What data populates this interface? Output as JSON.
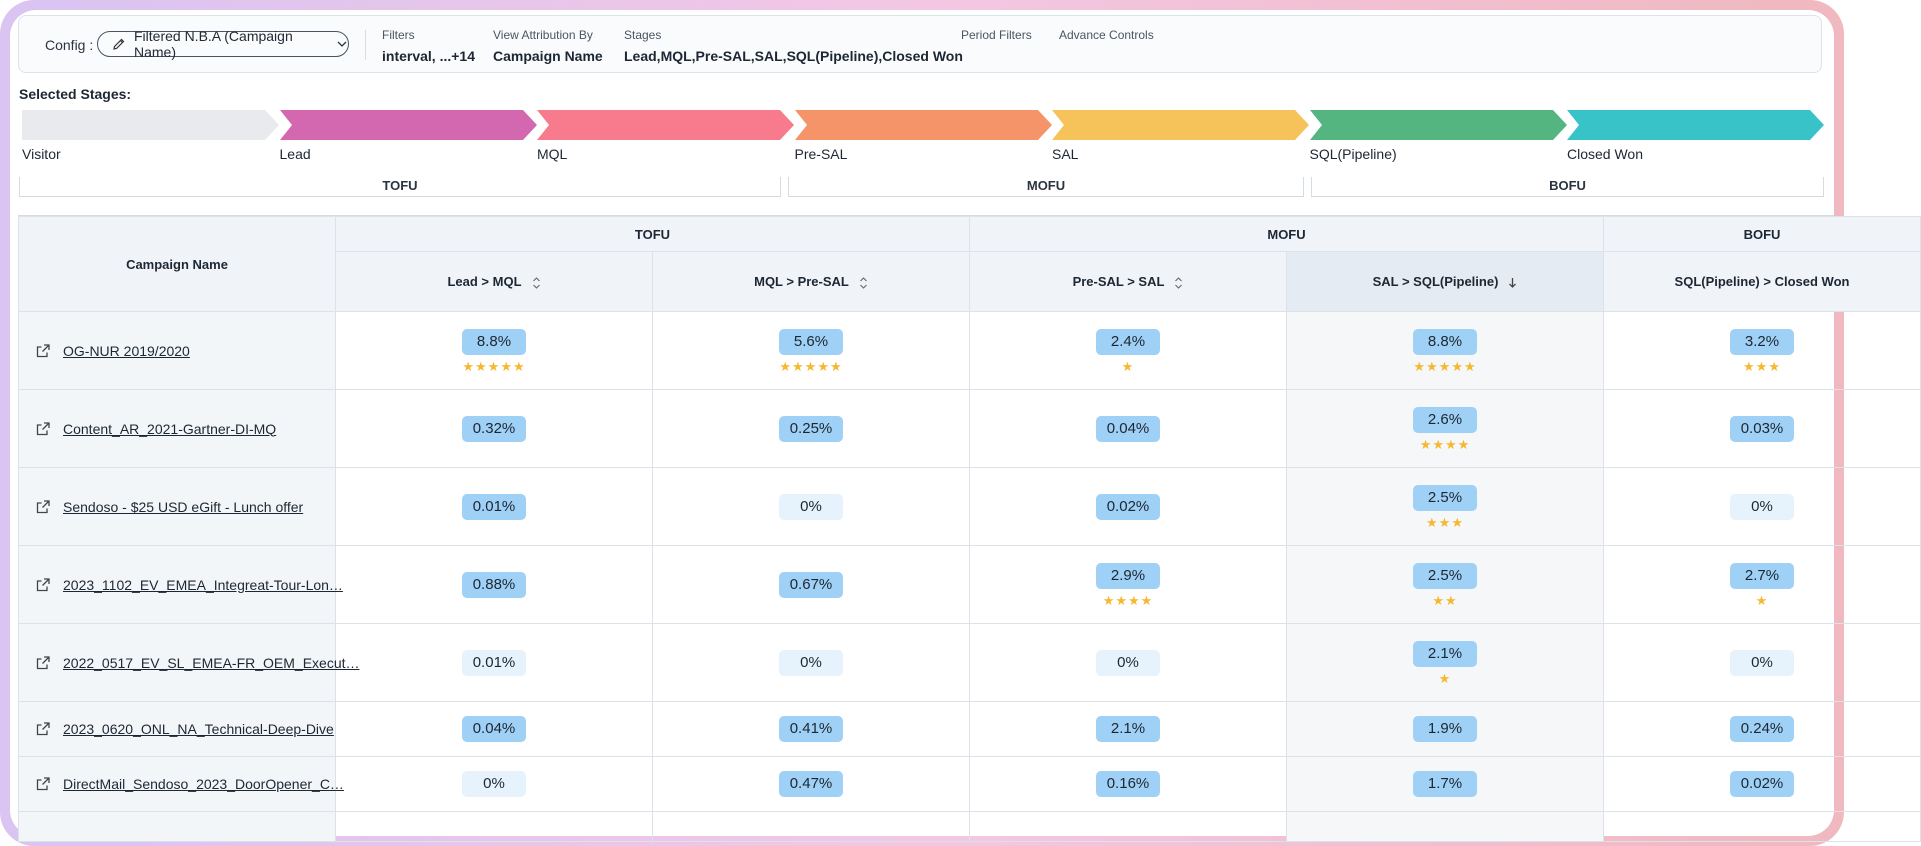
{
  "config": {
    "label": "Config :",
    "selected": "Filtered N.B.A (Campaign Name)",
    "filters": [
      {
        "key": "Filters",
        "value": "interval, ...+14"
      },
      {
        "key": "View Attribution By",
        "value": "Campaign Name"
      },
      {
        "key": "Stages",
        "value": "Lead,MQL,Pre-SAL,SAL,SQL(Pipeline),Closed Won"
      },
      {
        "key": "Period Filters",
        "value": ""
      },
      {
        "key": "Advance Controls",
        "value": ""
      }
    ]
  },
  "selected_stages_title": "Selected Stages:",
  "stages": [
    {
      "label": "Visitor",
      "color": "#e8eaed"
    },
    {
      "label": "Lead",
      "color": "#d468b0"
    },
    {
      "label": "MQL",
      "color": "#f77b8c"
    },
    {
      "label": "Pre-SAL",
      "color": "#f59468"
    },
    {
      "label": "SAL",
      "color": "#f5c35a"
    },
    {
      "label": "SQL(Pipeline)",
      "color": "#55b580"
    },
    {
      "label": "Closed Won",
      "color": "#38c3c9"
    }
  ],
  "funnel_groups": [
    "TOFU",
    "MOFU",
    "BOFU"
  ],
  "table": {
    "name_header": "Campaign Name",
    "group_headers": [
      "TOFU",
      "MOFU",
      "BOFU"
    ],
    "columns": [
      "Lead > MQL",
      "MQL > Pre-SAL",
      "Pre-SAL > SAL",
      "SAL > SQL(Pipeline)",
      "SQL(Pipeline) > Closed Won"
    ],
    "rows": [
      {
        "name": "OG-NUR 2019/2020",
        "cells": [
          {
            "v": "8.8%",
            "hi": true,
            "stars": "★★★★★"
          },
          {
            "v": "5.6%",
            "hi": true,
            "stars": "★★★★★"
          },
          {
            "v": "2.4%",
            "hi": true,
            "stars": "★"
          },
          {
            "v": "8.8%",
            "hi": true,
            "stars": "★★★★★"
          },
          {
            "v": "3.2%",
            "hi": true,
            "stars": "★★★"
          }
        ]
      },
      {
        "name": "Content_AR_2021-Gartner-DI-MQ",
        "cells": [
          {
            "v": "0.32%",
            "hi": true,
            "stars": ""
          },
          {
            "v": "0.25%",
            "hi": true,
            "stars": ""
          },
          {
            "v": "0.04%",
            "hi": true,
            "stars": ""
          },
          {
            "v": "2.6%",
            "hi": true,
            "stars": "★★★★"
          },
          {
            "v": "0.03%",
            "hi": true,
            "stars": ""
          }
        ]
      },
      {
        "name": "Sendoso - $25 USD eGift - Lunch offer",
        "cells": [
          {
            "v": "0.01%",
            "hi": true,
            "stars": ""
          },
          {
            "v": "0%",
            "hi": false,
            "stars": ""
          },
          {
            "v": "0.02%",
            "hi": true,
            "stars": ""
          },
          {
            "v": "2.5%",
            "hi": true,
            "stars": "★★★"
          },
          {
            "v": "0%",
            "hi": false,
            "stars": ""
          }
        ]
      },
      {
        "name": "2023_1102_EV_EMEA_Integreat-Tour-Lon…",
        "cells": [
          {
            "v": "0.88%",
            "hi": true,
            "stars": ""
          },
          {
            "v": "0.67%",
            "hi": true,
            "stars": ""
          },
          {
            "v": "2.9%",
            "hi": true,
            "stars": "★★★★"
          },
          {
            "v": "2.5%",
            "hi": true,
            "stars": "★★"
          },
          {
            "v": "2.7%",
            "hi": true,
            "stars": "★"
          }
        ]
      },
      {
        "name": "2022_0517_EV_SL_EMEA-FR_OEM_Execut…",
        "cells": [
          {
            "v": "0.01%",
            "hi": false,
            "stars": ""
          },
          {
            "v": "0%",
            "hi": false,
            "stars": ""
          },
          {
            "v": "0%",
            "hi": false,
            "stars": ""
          },
          {
            "v": "2.1%",
            "hi": true,
            "stars": "★"
          },
          {
            "v": "0%",
            "hi": false,
            "stars": ""
          }
        ]
      },
      {
        "name": "2023_0620_ONL_NA_Technical-Deep-Dive",
        "cells": [
          {
            "v": "0.04%",
            "hi": true,
            "stars": ""
          },
          {
            "v": "0.41%",
            "hi": true,
            "stars": ""
          },
          {
            "v": "2.1%",
            "hi": true,
            "stars": ""
          },
          {
            "v": "1.9%",
            "hi": true,
            "stars": ""
          },
          {
            "v": "0.24%",
            "hi": true,
            "stars": ""
          }
        ]
      },
      {
        "name": "DirectMail_Sendoso_2023_DoorOpener_C…",
        "cells": [
          {
            "v": "0%",
            "hi": false,
            "stars": ""
          },
          {
            "v": "0.47%",
            "hi": true,
            "stars": ""
          },
          {
            "v": "0.16%",
            "hi": true,
            "stars": ""
          },
          {
            "v": "1.7%",
            "hi": true,
            "stars": ""
          },
          {
            "v": "0.02%",
            "hi": true,
            "stars": ""
          }
        ]
      }
    ]
  }
}
